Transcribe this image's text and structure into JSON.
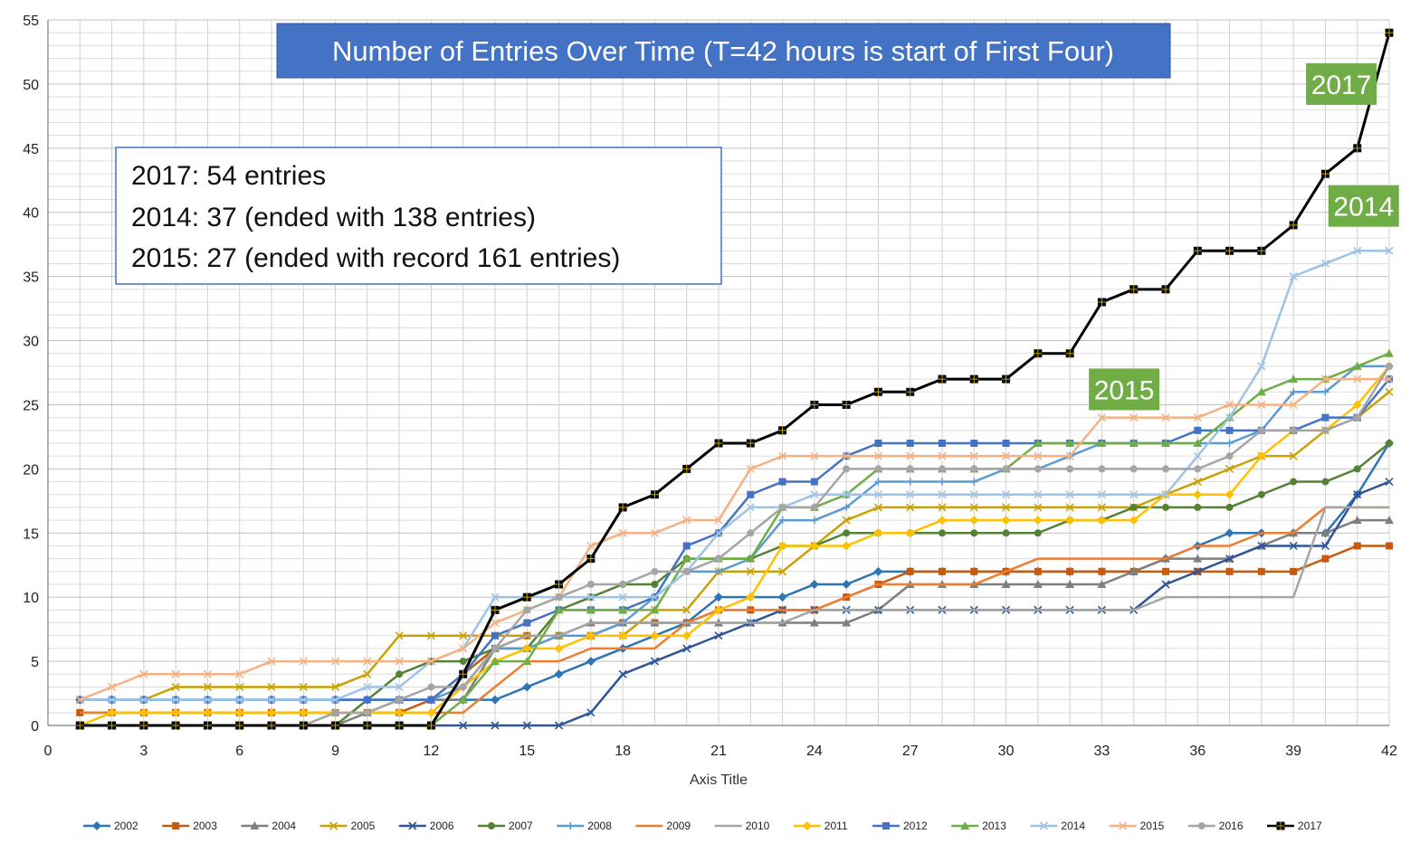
{
  "chart_data": {
    "type": "line",
    "title": "Number of Entries Over Time (T=42 hours is start of First Four)",
    "xlabel": "Axis Title",
    "ylabel": "",
    "xlim": [
      0,
      42
    ],
    "ylim": [
      0,
      55
    ],
    "x_ticks": [
      0,
      3,
      6,
      9,
      12,
      15,
      18,
      21,
      24,
      27,
      30,
      33,
      36,
      39,
      42
    ],
    "y_ticks": [
      0,
      5,
      10,
      15,
      20,
      25,
      30,
      35,
      40,
      45,
      50,
      55
    ],
    "grid": "on",
    "legend_position": "bottom",
    "x": [
      1,
      2,
      3,
      4,
      5,
      6,
      7,
      8,
      9,
      10,
      11,
      12,
      13,
      14,
      15,
      16,
      17,
      18,
      19,
      20,
      21,
      22,
      23,
      24,
      25,
      26,
      27,
      28,
      29,
      30,
      31,
      32,
      33,
      34,
      35,
      36,
      37,
      38,
      39,
      40,
      41,
      42
    ],
    "notes": [
      "2017:  54 entries",
      "2014:  37 (ended with 138 entries)",
      "2015:  27 (ended with record 161 entries)"
    ],
    "callouts": [
      {
        "label": "2017",
        "x": 40.5,
        "y": 50
      },
      {
        "label": "2014",
        "x": 41.2,
        "y": 40.5
      },
      {
        "label": "2015",
        "x": 33.7,
        "y": 26.2
      }
    ],
    "series": [
      {
        "name": "2002",
        "color": "#2E75B6",
        "marker": "diamond",
        "values": [
          2,
          2,
          2,
          2,
          2,
          2,
          2,
          2,
          2,
          2,
          2,
          2,
          2,
          2,
          3,
          4,
          5,
          6,
          7,
          8,
          10,
          10,
          10,
          11,
          11,
          12,
          12,
          12,
          12,
          12,
          12,
          12,
          12,
          12,
          13,
          14,
          15,
          15,
          15,
          15,
          18,
          22
        ]
      },
      {
        "name": "2003",
        "color": "#C55A11",
        "marker": "square",
        "values": [
          1,
          1,
          1,
          1,
          1,
          1,
          1,
          1,
          1,
          1,
          1,
          2,
          4,
          6,
          7,
          7,
          7,
          8,
          8,
          8,
          9,
          9,
          9,
          9,
          10,
          11,
          12,
          12,
          12,
          12,
          12,
          12,
          12,
          12,
          12,
          12,
          12,
          12,
          12,
          13,
          14,
          14
        ]
      },
      {
        "name": "2004",
        "color": "#7F7F7F",
        "marker": "triangle",
        "values": [
          0,
          0,
          0,
          0,
          0,
          0,
          0,
          0,
          0,
          1,
          2,
          2,
          2,
          6,
          6,
          7,
          8,
          8,
          8,
          8,
          8,
          8,
          8,
          8,
          8,
          9,
          11,
          11,
          11,
          11,
          11,
          11,
          11,
          12,
          13,
          13,
          13,
          14,
          15,
          15,
          16,
          16
        ]
      },
      {
        "name": "2005",
        "color": "#C9A100",
        "marker": "x",
        "values": [
          2,
          2,
          2,
          3,
          3,
          3,
          3,
          3,
          3,
          4,
          7,
          7,
          7,
          7,
          7,
          7,
          7,
          7,
          9,
          9,
          12,
          12,
          12,
          14,
          16,
          17,
          17,
          17,
          17,
          17,
          17,
          17,
          17,
          17,
          18,
          19,
          20,
          21,
          21,
          23,
          24,
          26
        ]
      },
      {
        "name": "2006",
        "color": "#2F5597",
        "marker": "x",
        "values": [
          0,
          0,
          0,
          0,
          0,
          0,
          0,
          0,
          0,
          0,
          0,
          0,
          0,
          0,
          0,
          0,
          1,
          4,
          5,
          6,
          7,
          8,
          9,
          9,
          9,
          9,
          9,
          9,
          9,
          9,
          9,
          9,
          9,
          9,
          11,
          12,
          13,
          14,
          14,
          14,
          18,
          19
        ]
      },
      {
        "name": "2007",
        "color": "#548235",
        "marker": "circle",
        "values": [
          0,
          0,
          0,
          0,
          0,
          0,
          0,
          0,
          0,
          2,
          4,
          5,
          5,
          6,
          6,
          9,
          10,
          11,
          11,
          13,
          13,
          13,
          14,
          14,
          15,
          15,
          15,
          15,
          15,
          15,
          15,
          16,
          16,
          17,
          17,
          17,
          17,
          18,
          19,
          19,
          20,
          22
        ]
      },
      {
        "name": "2008",
        "color": "#5B9BD5",
        "marker": "plus",
        "values": [
          2,
          2,
          2,
          2,
          2,
          2,
          2,
          2,
          2,
          2,
          2,
          2,
          3,
          6,
          6,
          7,
          7,
          8,
          10,
          12,
          12,
          13,
          16,
          16,
          17,
          19,
          19,
          19,
          19,
          20,
          20,
          21,
          22,
          22,
          22,
          22,
          22,
          23,
          26,
          26,
          28,
          28
        ]
      },
      {
        "name": "2009",
        "color": "#ED7D31",
        "marker": "none",
        "values": [
          1,
          1,
          1,
          1,
          1,
          1,
          1,
          1,
          1,
          1,
          1,
          1,
          1,
          3,
          5,
          5,
          6,
          6,
          6,
          8,
          9,
          9,
          9,
          9,
          10,
          11,
          11,
          11,
          11,
          12,
          13,
          13,
          13,
          13,
          13,
          14,
          14,
          15,
          15,
          17,
          17,
          17
        ]
      },
      {
        "name": "2010",
        "color": "#A5A5A5",
        "marker": "none",
        "values": [
          0,
          0,
          0,
          0,
          0,
          0,
          0,
          0,
          1,
          1,
          1,
          1,
          3,
          6,
          7,
          7,
          8,
          8,
          8,
          8,
          8,
          8,
          8,
          9,
          9,
          9,
          9,
          9,
          9,
          9,
          9,
          9,
          9,
          9,
          10,
          10,
          10,
          10,
          10,
          17,
          17,
          17
        ]
      },
      {
        "name": "2011",
        "color": "#FFC000",
        "marker": "diamond",
        "values": [
          0,
          1,
          1,
          1,
          1,
          1,
          1,
          1,
          1,
          1,
          1,
          1,
          3,
          5,
          6,
          6,
          7,
          7,
          7,
          7,
          9,
          10,
          14,
          14,
          14,
          15,
          15,
          16,
          16,
          16,
          16,
          16,
          16,
          16,
          18,
          18,
          18,
          21,
          23,
          23,
          25,
          28
        ]
      },
      {
        "name": "2012",
        "color": "#4472C4",
        "marker": "square",
        "values": [
          2,
          2,
          2,
          2,
          2,
          2,
          2,
          2,
          2,
          2,
          2,
          2,
          4,
          7,
          8,
          9,
          9,
          9,
          10,
          14,
          15,
          18,
          19,
          19,
          21,
          22,
          22,
          22,
          22,
          22,
          22,
          22,
          22,
          22,
          22,
          23,
          23,
          23,
          23,
          24,
          24,
          27
        ]
      },
      {
        "name": "2013",
        "color": "#70AD47",
        "marker": "triangle",
        "values": [
          0,
          0,
          0,
          0,
          0,
          0,
          0,
          0,
          0,
          0,
          0,
          0,
          2,
          5,
          5,
          9,
          9,
          9,
          9,
          13,
          13,
          13,
          17,
          17,
          18,
          20,
          20,
          20,
          20,
          20,
          22,
          22,
          22,
          22,
          22,
          22,
          24,
          26,
          27,
          27,
          28,
          29
        ]
      },
      {
        "name": "2014",
        "color": "#9DC3E6",
        "marker": "x",
        "values": [
          2,
          2,
          2,
          2,
          2,
          2,
          2,
          2,
          2,
          3,
          3,
          5,
          6,
          10,
          10,
          10,
          10,
          10,
          10,
          12,
          15,
          17,
          17,
          18,
          18,
          18,
          18,
          18,
          18,
          18,
          18,
          18,
          18,
          18,
          18,
          21,
          24,
          28,
          35,
          36,
          37,
          37
        ]
      },
      {
        "name": "2015",
        "color": "#F4B183",
        "marker": "x",
        "values": [
          2,
          3,
          4,
          4,
          4,
          4,
          5,
          5,
          5,
          5,
          5,
          5,
          6,
          8,
          9,
          10,
          14,
          15,
          15,
          16,
          16,
          20,
          21,
          21,
          21,
          21,
          21,
          21,
          21,
          21,
          21,
          21,
          24,
          24,
          24,
          24,
          25,
          25,
          25,
          27,
          27,
          27
        ]
      },
      {
        "name": "2016",
        "color": "#A5A5A5",
        "marker": "circle",
        "values": [
          0,
          0,
          0,
          0,
          0,
          0,
          0,
          0,
          1,
          1,
          2,
          3,
          3,
          6,
          9,
          10,
          11,
          11,
          12,
          12,
          13,
          15,
          17,
          17,
          20,
          20,
          20,
          20,
          20,
          20,
          20,
          20,
          20,
          20,
          20,
          20,
          21,
          23,
          23,
          23,
          24,
          28
        ]
      },
      {
        "name": "2017",
        "color": "#000000",
        "marker": "square-black",
        "values": [
          0,
          0,
          0,
          0,
          0,
          0,
          0,
          0,
          0,
          0,
          0,
          0,
          4,
          9,
          10,
          11,
          13,
          17,
          18,
          20,
          22,
          22,
          23,
          25,
          25,
          26,
          26,
          27,
          27,
          27,
          29,
          29,
          33,
          34,
          34,
          37,
          37,
          37,
          39,
          43,
          45,
          54
        ]
      }
    ]
  }
}
